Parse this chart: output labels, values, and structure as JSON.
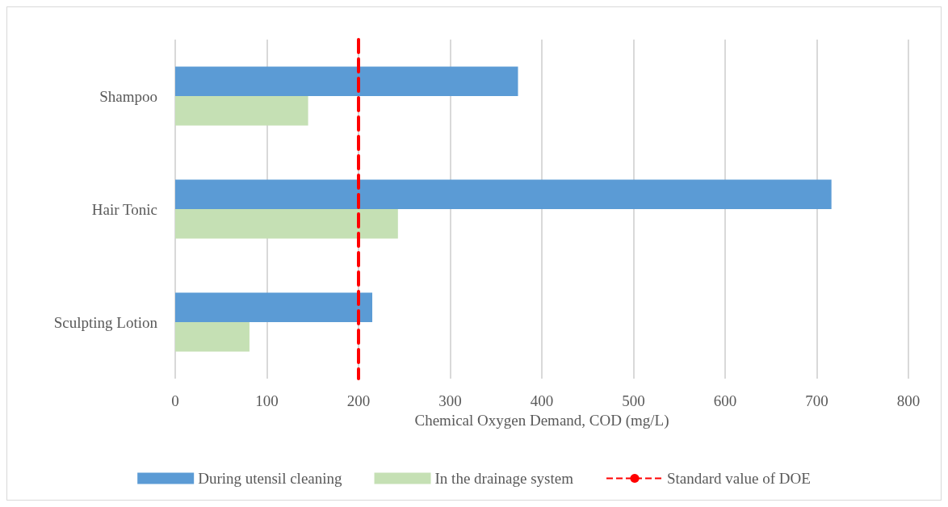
{
  "chart_data": {
    "type": "bar",
    "orientation": "horizontal",
    "xlabel": "Chemical Oxygen Demand, COD (mg/L)",
    "categories": [
      "Shampoo",
      "Hair Tonic",
      "Sculpting Lotion"
    ],
    "series": [
      {
        "name": "During utensil cleaning",
        "color": "#5b9bd5",
        "values": [
          374,
          716,
          215
        ]
      },
      {
        "name": "In the drainage system",
        "color": "#c5e0b4",
        "values": [
          145,
          243,
          81
        ]
      }
    ],
    "xlim": [
      0,
      800
    ],
    "xticks": [
      0,
      100,
      200,
      300,
      400,
      500,
      600,
      700,
      800
    ],
    "grid": "x",
    "legend": "bottom",
    "ref_lines": [
      {
        "axis": "x",
        "value": 200,
        "label": "Standard value of DOE",
        "color": "#ff0000",
        "line_style": "dashed"
      }
    ]
  }
}
